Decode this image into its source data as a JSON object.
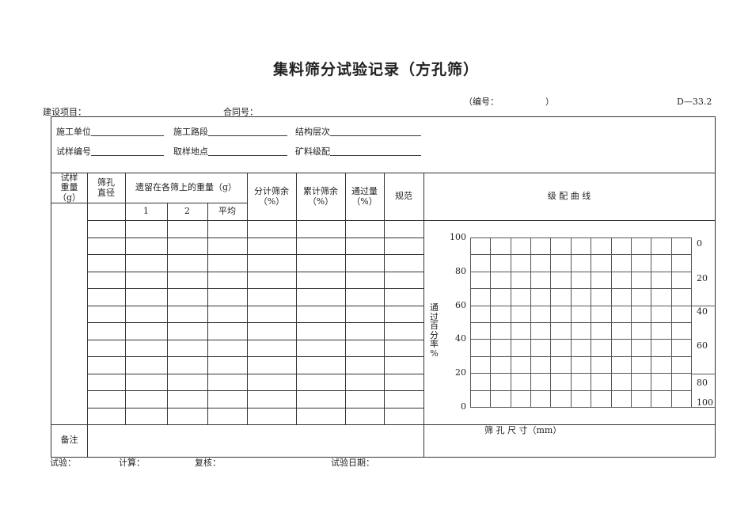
{
  "title": "集料筛分试验记录（方孔筛）",
  "form_number_label": "（编号：",
  "form_number_close": "）",
  "form_code": "D—33.2",
  "header": {
    "project_label": "建设项目：",
    "contract_label": "合同号："
  },
  "info": {
    "construction_unit": "施工单位",
    "construction_section": "施工路段",
    "structure_layer": "结构层次",
    "sample_no": "试样编号",
    "sampling_location": "取样地点",
    "mineral_gradation": "矿料级配"
  },
  "table": {
    "sample_weight": "试样\n重量\n（g）",
    "sieve_diameter": "筛孔\n直径",
    "retained_weight": "遗留在各筛上的重量（g）",
    "col_1": "1",
    "col_2": "2",
    "col_avg": "平均",
    "partial_retained": "分计筛余\n（%）",
    "cumulative_retained": "累计筛余\n（%）",
    "passing": "通过量\n（%）",
    "spec": "规范",
    "gradation_curve": "级 配 曲 线",
    "remarks": "备注",
    "data_row_count": 12
  },
  "chart": {
    "y_label": "通\n过\n百\n分\n率\n%",
    "x_label": "筛 孔 尺 寸（mm）",
    "left_ticks": [
      "100",
      "80",
      "60",
      "40",
      "20",
      "0"
    ],
    "right_ticks": [
      "0",
      "20",
      "40",
      "60",
      "80",
      "100"
    ],
    "grid_columns": 11,
    "grid_rows": 10
  },
  "footer": {
    "tester": "试验：",
    "calculator": "计算：",
    "reviewer": "复核：",
    "test_date": "试验日期："
  }
}
